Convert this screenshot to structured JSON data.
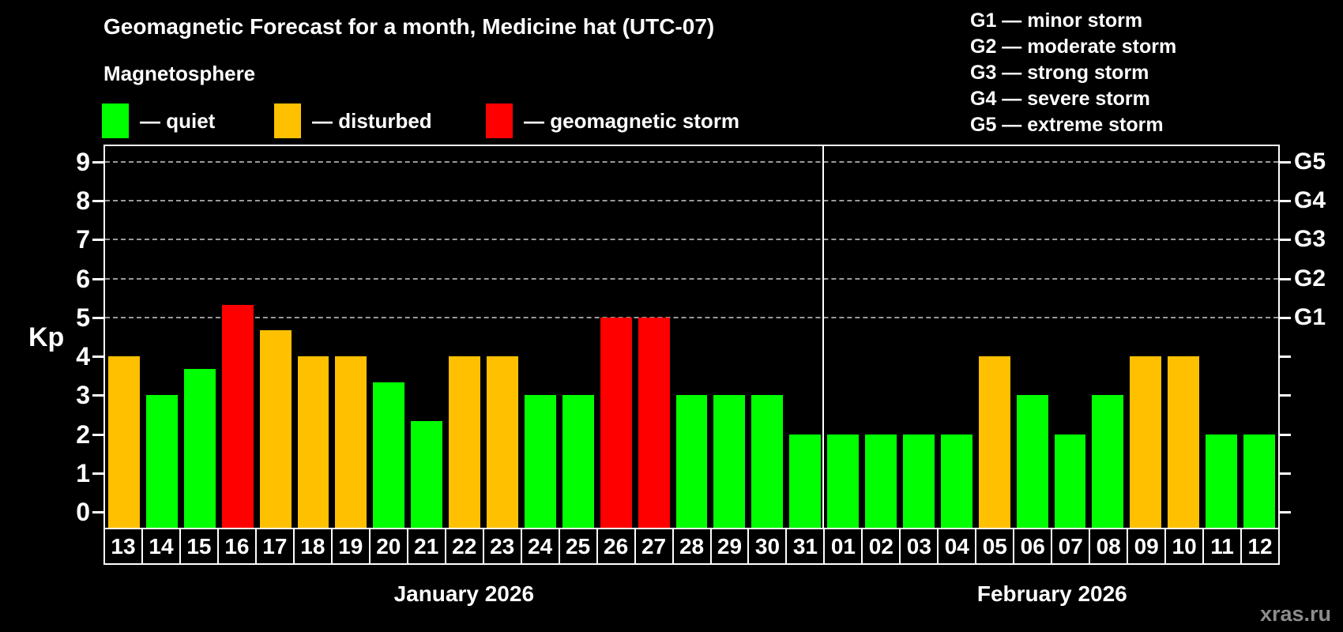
{
  "title": "Geomagnetic Forecast for a month, Medicine hat (UTC-07)",
  "subtitle": "Magnetosphere",
  "legend": {
    "quiet_label": "— quiet",
    "disturbed_label": "— disturbed",
    "storm_label": "— geomagnetic storm"
  },
  "g_legend": [
    "G1 — minor storm",
    "G2 — moderate storm",
    "G3 — strong storm",
    "G4 — severe storm",
    "G5 — extreme storm"
  ],
  "axis": {
    "y_label": "Kp"
  },
  "watermark": "xras.ru",
  "colors": {
    "quiet": "#00FF00",
    "disturbed": "#FFC000",
    "storm": "#FF0000",
    "axis": "#FFFFFF",
    "grid": "#9A9A9A",
    "watermark": "#8C8C8C"
  },
  "chart_data": {
    "type": "bar",
    "title": "Geomagnetic Forecast for a month, Medicine hat (UTC-07)",
    "xlabel": "",
    "ylabel": "Kp",
    "ylim": [
      -0.4,
      9.4
    ],
    "yticks": [
      0,
      1,
      2,
      3,
      4,
      5,
      6,
      7,
      8,
      9
    ],
    "gridlines_at": [
      5,
      6,
      7,
      8,
      9
    ],
    "grid": "dashed horizontal lines only at G-storm levels 5-9",
    "legend_position": "top-left",
    "right_axis_labels": [
      {
        "kp": 5,
        "label": "G1"
      },
      {
        "kp": 6,
        "label": "G2"
      },
      {
        "kp": 7,
        "label": "G3"
      },
      {
        "kp": 8,
        "label": "G4"
      },
      {
        "kp": 9,
        "label": "G5"
      }
    ],
    "categories": [
      "13",
      "14",
      "15",
      "16",
      "17",
      "18",
      "19",
      "20",
      "21",
      "22",
      "23",
      "24",
      "25",
      "26",
      "27",
      "28",
      "29",
      "30",
      "31",
      "01",
      "02",
      "03",
      "04",
      "05",
      "06",
      "07",
      "08",
      "09",
      "10",
      "11",
      "12"
    ],
    "values": [
      4,
      3,
      3.67,
      5.33,
      4.67,
      4,
      4,
      3.33,
      2.33,
      4,
      4,
      3,
      3,
      5,
      5,
      3,
      3,
      3,
      2,
      2,
      2,
      2,
      2,
      4,
      3,
      2,
      3,
      4,
      4,
      2,
      2
    ],
    "statuses": [
      "disturbed",
      "quiet",
      "quiet",
      "storm",
      "disturbed",
      "disturbed",
      "disturbed",
      "quiet",
      "quiet",
      "disturbed",
      "disturbed",
      "quiet",
      "quiet",
      "storm",
      "storm",
      "quiet",
      "quiet",
      "quiet",
      "quiet",
      "quiet",
      "quiet",
      "quiet",
      "quiet",
      "disturbed",
      "quiet",
      "quiet",
      "quiet",
      "disturbed",
      "disturbed",
      "quiet",
      "quiet"
    ],
    "months": [
      {
        "label": "January 2026",
        "count": 19
      },
      {
        "label": "February 2026",
        "count": 12
      }
    ]
  }
}
